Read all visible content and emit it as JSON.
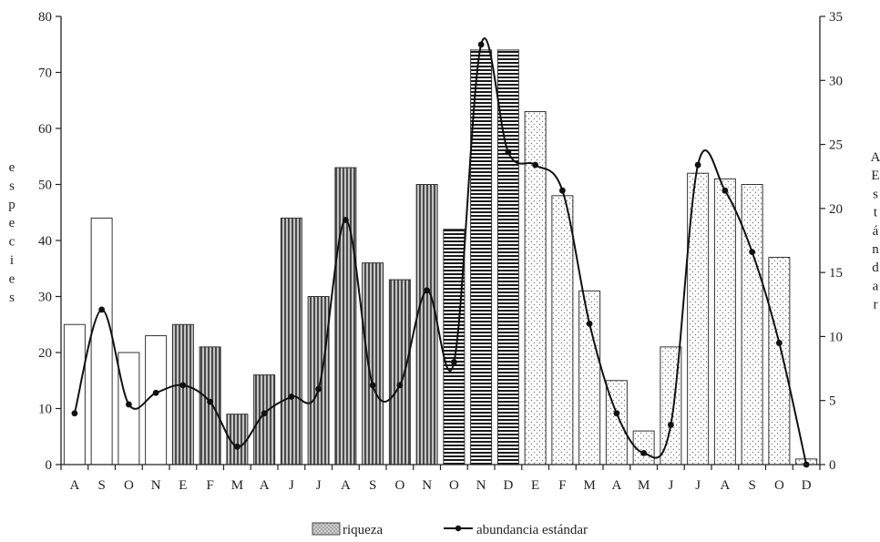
{
  "chart_data": {
    "type": "bar+line",
    "categories": [
      "A",
      "S",
      "O",
      "N",
      "E",
      "F",
      "M",
      "A",
      "J",
      "J",
      "A",
      "S",
      "O",
      "N",
      "O",
      "N",
      "D",
      "E",
      "F",
      "M",
      "A",
      "M",
      "J",
      "J",
      "A",
      "S",
      "O",
      "D"
    ],
    "series": [
      {
        "name": "riqueza",
        "type": "bar",
        "axis": "left",
        "values": [
          25,
          44,
          20,
          23,
          25,
          21,
          9,
          16,
          44,
          30,
          53,
          36,
          33,
          50,
          42,
          74,
          74,
          63,
          48,
          31,
          15,
          6,
          21,
          52,
          51,
          50,
          37,
          1
        ],
        "patterns": [
          "blank",
          "blank",
          "blank",
          "blank",
          "vertical",
          "vertical",
          "vertical",
          "vertical",
          "vertical",
          "vertical",
          "vertical",
          "vertical",
          "vertical",
          "vertical",
          "horizontal",
          "horizontal",
          "horizontal",
          "dots",
          "dots",
          "dots",
          "dots",
          "dots",
          "dots",
          "dots",
          "dots",
          "dots",
          "dots",
          "dots"
        ]
      },
      {
        "name": "abundancia estándar",
        "type": "line",
        "axis": "right",
        "values": [
          4.0,
          12.1,
          4.7,
          5.6,
          6.2,
          4.9,
          1.4,
          4.0,
          5.3,
          5.9,
          19.1,
          6.2,
          6.2,
          13.6,
          8.0,
          32.8,
          24.4,
          23.4,
          21.4,
          11.0,
          4.0,
          0.9,
          3.1,
          23.4,
          21.4,
          16.6,
          9.5,
          0.0
        ]
      }
    ],
    "yleft": {
      "label": "especies",
      "ylim": [
        0,
        80
      ],
      "ticks": [
        "0",
        "10",
        "20",
        "30",
        "40",
        "50",
        "60",
        "70",
        "80"
      ]
    },
    "yright": {
      "label": "AEstándar",
      "ylim": [
        0,
        35
      ],
      "ticks": [
        "0",
        "5",
        "10",
        "15",
        "20",
        "25",
        "30",
        "35"
      ]
    },
    "legend": {
      "placement": "bottom",
      "bar_label": "riqueza",
      "line_label": "abundancia estándar"
    },
    "grid": false
  }
}
